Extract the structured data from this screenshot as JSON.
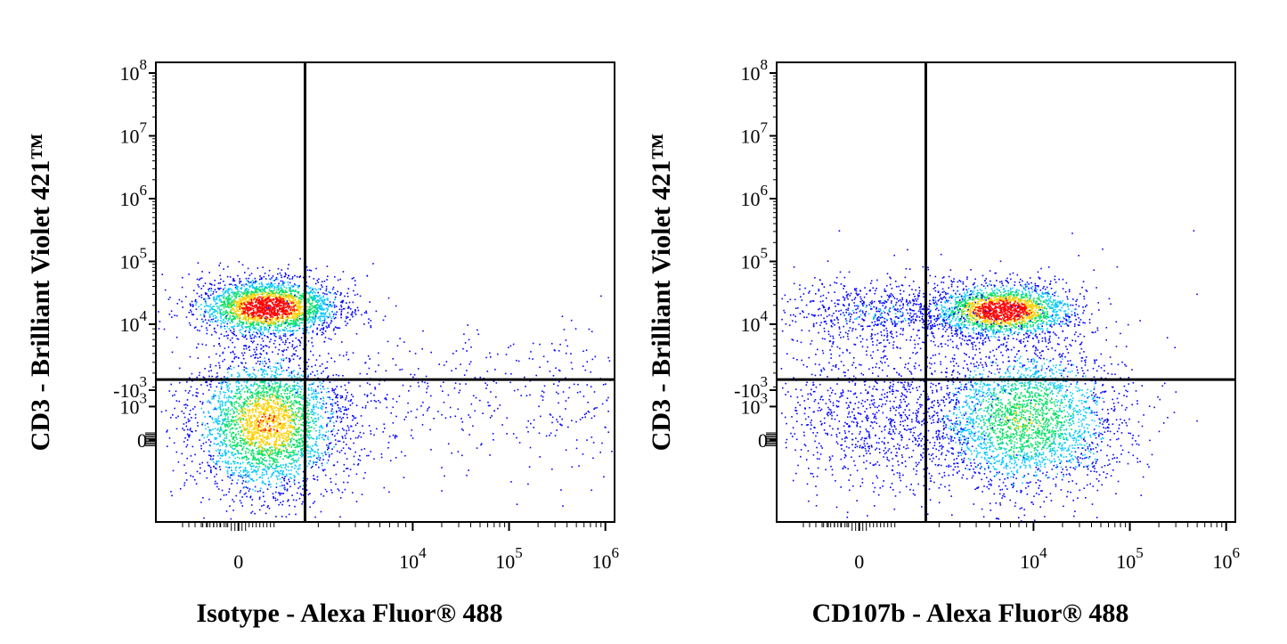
{
  "chart_data": [
    {
      "type": "scatter",
      "style": "flow-cytometry-density-plot",
      "xlabel": "Isotype - Alexa Fluor® 488",
      "ylabel": "CD3 - Brilliant Violet 421™",
      "x_scale": "biexponential",
      "y_scale": "biexponential",
      "x_ticks": [
        {
          "value": 0,
          "base": "0",
          "exp": ""
        },
        {
          "value": 10000,
          "base": "10",
          "exp": "4"
        },
        {
          "value": 100000,
          "base": "10",
          "exp": "5"
        },
        {
          "value": 1000000,
          "base": "10",
          "exp": "6"
        }
      ],
      "y_ticks": [
        {
          "value": 100000000,
          "base": "10",
          "exp": "8"
        },
        {
          "value": 10000000,
          "base": "10",
          "exp": "7"
        },
        {
          "value": 1000000,
          "base": "10",
          "exp": "6"
        },
        {
          "value": 100000,
          "base": "10",
          "exp": "5"
        },
        {
          "value": 10000,
          "base": "10",
          "exp": "4"
        },
        {
          "value": 1000,
          "base": "10",
          "exp": "3"
        },
        {
          "value": 0,
          "base": "0",
          "exp": ""
        },
        {
          "value": -1000,
          "base": "-10",
          "exp": "3"
        }
      ],
      "quadrant_gate": {
        "x": 1500,
        "y": 2500
      },
      "populations": [
        {
          "name": "",
          "center_x": 500,
          "center_y": 15000,
          "density": "high"
        },
        {
          "name": "",
          "center_x": 500,
          "center_y": 500,
          "density": "high"
        },
        {
          "name": "",
          "center_x": 20000,
          "center_y": 800,
          "density": "sparse"
        }
      ],
      "grid": false,
      "legend": "none"
    },
    {
      "type": "scatter",
      "style": "flow-cytometry-density-plot",
      "xlabel": "CD107b - Alexa Fluor® 488",
      "ylabel": "CD3 - Brilliant Violet 421™",
      "x_scale": "biexponential",
      "y_scale": "biexponential",
      "x_ticks": [
        {
          "value": 0,
          "base": "0",
          "exp": ""
        },
        {
          "value": 10000,
          "base": "10",
          "exp": "4"
        },
        {
          "value": 100000,
          "base": "10",
          "exp": "5"
        },
        {
          "value": 1000000,
          "base": "10",
          "exp": "6"
        }
      ],
      "y_ticks": [
        {
          "value": 100000000,
          "base": "10",
          "exp": "8"
        },
        {
          "value": 10000000,
          "base": "10",
          "exp": "7"
        },
        {
          "value": 1000000,
          "base": "10",
          "exp": "6"
        },
        {
          "value": 100000,
          "base": "10",
          "exp": "5"
        },
        {
          "value": 10000,
          "base": "10",
          "exp": "4"
        },
        {
          "value": 1000,
          "base": "10",
          "exp": "3"
        },
        {
          "value": 0,
          "base": "0",
          "exp": ""
        },
        {
          "value": -1000,
          "base": "-10",
          "exp": "3"
        }
      ],
      "quadrant_gate": {
        "x": 1500,
        "y": 2500
      },
      "populations": [
        {
          "name": "",
          "center_x": 6000,
          "center_y": 14000,
          "density": "high"
        },
        {
          "name": "",
          "center_x": 8000,
          "center_y": 400,
          "density": "medium"
        },
        {
          "name": "",
          "center_x": 200,
          "center_y": 14000,
          "density": "low"
        },
        {
          "name": "",
          "center_x": 200,
          "center_y": 500,
          "density": "low"
        }
      ],
      "grid": false,
      "legend": "none"
    }
  ],
  "density_colors": [
    "#0000ff",
    "#00c8ff",
    "#00e060",
    "#ffd000",
    "#ff0000"
  ]
}
